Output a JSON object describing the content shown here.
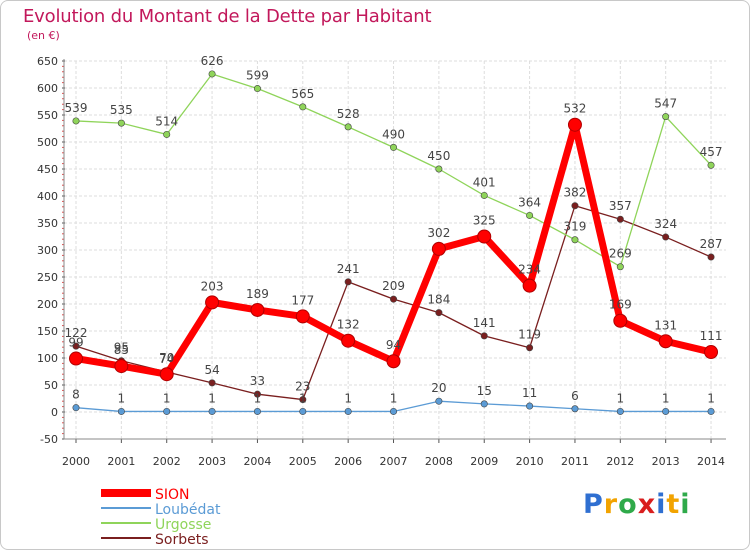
{
  "chart_data": {
    "type": "line",
    "title": "Evolution du Montant de la Dette par Habitant",
    "subtitle": "(en €)",
    "x": [
      "2000",
      "2001",
      "2002",
      "2003",
      "2004",
      "2005",
      "2006",
      "2007",
      "2008",
      "2009",
      "2010",
      "2011",
      "2012",
      "2013",
      "2014"
    ],
    "y_ticks": [
      "-50",
      "0",
      "50",
      "100",
      "150",
      "200",
      "250",
      "300",
      "350",
      "400",
      "450",
      "500",
      "550",
      "600",
      "650"
    ],
    "ylim": [
      -50,
      650
    ],
    "grid": true,
    "legend_position": "bottom-left",
    "series": [
      {
        "name": "SION",
        "color": "#ff0000",
        "values": [
          99,
          85,
          70,
          203,
          189,
          177,
          132,
          94,
          302,
          325,
          234,
          532,
          169,
          131,
          111
        ],
        "labels": [
          "99",
          "85",
          "70",
          "203",
          "189",
          "177",
          "132",
          "94",
          "302",
          "325",
          "234",
          "532",
          "169",
          "131",
          "111"
        ]
      },
      {
        "name": "Loubédat",
        "color": "#5b9bd5",
        "values": [
          8,
          1,
          1,
          1,
          1,
          1,
          1,
          1,
          20,
          15,
          11,
          6,
          1,
          1,
          1
        ],
        "labels": [
          "8",
          "1",
          "1",
          "1",
          "1",
          "1",
          "1",
          "1",
          "20",
          "15",
          "11",
          "6",
          "1",
          "1",
          "1"
        ]
      },
      {
        "name": "Urgosse",
        "color": "#8fd45a",
        "values": [
          539,
          535,
          514,
          626,
          599,
          565,
          528,
          490,
          450,
          401,
          364,
          319,
          269,
          547,
          457
        ],
        "labels": [
          "539",
          "535",
          "514",
          "626",
          "599",
          "565",
          "528",
          "490",
          "450",
          "401",
          "364",
          "319",
          "269",
          "547",
          "457"
        ]
      },
      {
        "name": "Sorbets",
        "color": "#7a1f1f",
        "values": [
          122,
          95,
          74,
          54,
          33,
          23,
          241,
          209,
          184,
          141,
          119,
          382,
          357,
          324,
          287
        ],
        "labels": [
          "122",
          "95",
          "74",
          "54",
          "33",
          "23",
          "241",
          "209",
          "184",
          "141",
          "119",
          "382",
          "357",
          "324",
          "287"
        ]
      }
    ]
  },
  "brand": {
    "letters": [
      "P",
      "r",
      "o",
      "x",
      "i",
      "t",
      "i"
    ],
    "colors": [
      "#2f6fd1",
      "#f2a300",
      "#2faa4a",
      "#d91e1e",
      "#2f6fd1",
      "#f2a300",
      "#2faa4a"
    ]
  }
}
